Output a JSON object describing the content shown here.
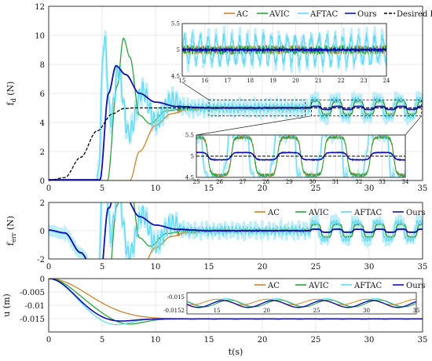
{
  "colors": {
    "AC": "#c8862e",
    "AVIC": "#2ea043",
    "AFTAC": "#66d9f2",
    "Ours": "#1111aa",
    "Desired": "#000000",
    "AC_light": "#e0b77a",
    "AVIC_light": "#8fd49a",
    "AFTAC_light": "#bfeef9"
  },
  "chart_data": [
    {
      "type": "line",
      "id": "force",
      "ylabel": "f",
      "ylabel_sub": "d",
      "ylabel_unit": "(N)",
      "xlim": [
        0,
        35
      ],
      "ylim": [
        0,
        12
      ],
      "xticks": [
        "0",
        "5",
        "10",
        "15",
        "20",
        "25",
        "30",
        "35"
      ],
      "yticks": [
        "0",
        "2",
        "4",
        "6",
        "8",
        "10",
        "12"
      ],
      "legend": [
        "AC",
        "AVIC",
        "AFTAC",
        "Ours",
        "Desired Force"
      ],
      "legend_position": "top-right",
      "grid": true,
      "steady_value": 5.0,
      "series": [
        {
          "name": "AC",
          "description_points": [
            [
              0,
              0
            ],
            [
              7.6,
              0
            ],
            [
              8.5,
              2.0
            ],
            [
              10,
              3.8
            ],
            [
              11.5,
              4.6
            ],
            [
              13,
              4.9
            ],
            [
              15,
              5.0
            ]
          ],
          "oscillation_amplitude": 0.5
        },
        {
          "name": "AVIC",
          "peak": [
            7,
            9.8
          ],
          "description_points": [
            [
              0,
              0
            ],
            [
              5.5,
              0
            ],
            [
              6.4,
              6.5
            ],
            [
              7,
              9.8
            ],
            [
              7.6,
              8.5
            ],
            [
              8.5,
              4.5
            ],
            [
              9.5,
              3.9
            ],
            [
              11,
              4.8
            ],
            [
              13,
              5.0
            ]
          ],
          "oscillation_amplitude": 0.5
        },
        {
          "name": "AFTAC",
          "peak": [
            5.2,
            9.8
          ],
          "description_points": [
            [
              0,
              0
            ],
            [
              4.6,
              0
            ],
            [
              5.2,
              9.8
            ],
            [
              5.8,
              4.2
            ],
            [
              6.5,
              7.5
            ],
            [
              7.5,
              3.2
            ],
            [
              8.8,
              6.2
            ],
            [
              10,
              4.0
            ],
            [
              11.5,
              5.5
            ],
            [
              13,
              5.0
            ]
          ],
          "oscillation_amplitude": 0.55
        },
        {
          "name": "Ours",
          "peak": [
            6.3,
            7.9
          ],
          "description_points": [
            [
              0,
              0.05
            ],
            [
              4.8,
              0.05
            ],
            [
              5.6,
              6.0
            ],
            [
              6.3,
              7.9
            ],
            [
              7.2,
              7.3
            ],
            [
              8.5,
              6.0
            ],
            [
              10,
              5.4
            ],
            [
              12,
              5.1
            ],
            [
              15,
              5.0
            ]
          ],
          "oscillation_amplitude": 0.12
        },
        {
          "name": "Desired Force",
          "description_points": [
            [
              0,
              0
            ],
            [
              1.5,
              0.2
            ],
            [
              3,
              1.6
            ],
            [
              4.5,
              3.4
            ],
            [
              6,
              4.6
            ],
            [
              7,
              4.95
            ],
            [
              8,
              5.0
            ],
            [
              35,
              5.0
            ]
          ]
        }
      ],
      "insets": [
        {
          "xlim": [
            15,
            24
          ],
          "ylim": [
            4.5,
            5.5
          ],
          "xticks": [
            "15",
            "16",
            "17",
            "18",
            "19",
            "20",
            "21",
            "22",
            "23",
            "24"
          ],
          "yticks": [
            "4.5",
            "5",
            "5.5"
          ]
        },
        {
          "xlim": [
            25,
            34
          ],
          "ylim": [
            4.5,
            5.5
          ],
          "xticks": [
            "25",
            "26",
            "27",
            "28",
            "29",
            "30",
            "31",
            "32",
            "33",
            "34"
          ],
          "yticks": [
            "4.5",
            "5",
            "5.5"
          ],
          "period": 2.0
        }
      ]
    },
    {
      "type": "line",
      "id": "error",
      "ylabel": "f",
      "ylabel_sub": "err",
      "ylabel_unit": "(N)",
      "xlim": [
        0,
        35
      ],
      "ylim": [
        -2,
        2
      ],
      "xticks": [
        "0",
        "5",
        "10",
        "15",
        "20",
        "25",
        "30",
        "35"
      ],
      "yticks": [
        "-2",
        "0",
        "2"
      ],
      "legend": [
        "AC",
        "AVIC",
        "AFTAC",
        "Ours"
      ],
      "legend_position": "top-right",
      "grid": true
    },
    {
      "type": "line",
      "id": "displacement",
      "ylabel": "u (m)",
      "xlabel": "t(s)",
      "xlim": [
        0,
        35
      ],
      "ylim": [
        -0.02,
        0
      ],
      "xticks": [
        "0",
        "5",
        "10",
        "15",
        "20",
        "25",
        "30",
        "35"
      ],
      "yticks": [
        "0",
        "-0.005",
        "-0.01",
        "-0.015"
      ],
      "legend": [
        "AC",
        "AVIC",
        "AFTAC",
        "Ours"
      ],
      "legend_position": "top-right",
      "grid": true,
      "steady_value": -0.0151,
      "inset": {
        "yticks": [
          "-0.015",
          "-0.0152"
        ],
        "xticks": [
          "15",
          "20",
          "25",
          "30",
          "35"
        ]
      }
    }
  ]
}
